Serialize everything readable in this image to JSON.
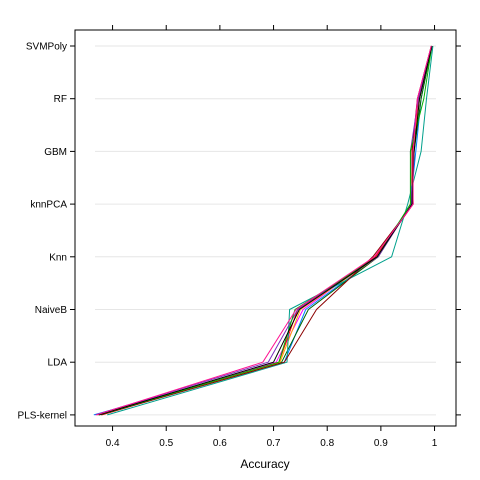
{
  "chart_data": {
    "type": "line",
    "title": "",
    "xlabel": "Accuracy",
    "ylabel": "",
    "xlim": [
      0.33,
      1.04
    ],
    "x_ticks": [
      "0.4",
      "0.5",
      "0.6",
      "0.7",
      "0.8",
      "0.9",
      "1"
    ],
    "x_tick_values": [
      0.4,
      0.5,
      0.6,
      0.7,
      0.8,
      0.9,
      1.0
    ],
    "categories": [
      "PLS-kernel",
      "LDA",
      "NaiveB",
      "Knn",
      "knnPCA",
      "GBM",
      "RF",
      "SVMPoly"
    ],
    "grid": true,
    "legend": "none",
    "series": [
      {
        "color": "#0080ff",
        "values": [
          0.365,
          0.72,
          0.76,
          0.895,
          0.955,
          0.965,
          0.975,
          0.995
        ]
      },
      {
        "color": "#ff00ff",
        "values": [
          0.37,
          0.705,
          0.755,
          0.89,
          0.96,
          0.958,
          0.972,
          0.996
        ]
      },
      {
        "color": "#006400",
        "values": [
          0.375,
          0.715,
          0.765,
          0.895,
          0.957,
          0.962,
          0.975,
          0.995
        ]
      },
      {
        "color": "#ff0000",
        "values": [
          0.38,
          0.71,
          0.745,
          0.89,
          0.96,
          0.958,
          0.97,
          0.994
        ]
      },
      {
        "color": "#ffa500",
        "values": [
          0.372,
          0.712,
          0.75,
          0.895,
          0.955,
          0.96,
          0.972,
          0.995
        ]
      },
      {
        "color": "#00a08c",
        "values": [
          0.39,
          0.725,
          0.73,
          0.92,
          0.95,
          0.975,
          0.985,
          0.997
        ]
      },
      {
        "color": "#8b0000",
        "values": [
          0.378,
          0.72,
          0.78,
          0.885,
          0.96,
          0.958,
          0.968,
          0.994
        ]
      },
      {
        "color": "#7b2fbe",
        "values": [
          0.368,
          0.69,
          0.745,
          0.895,
          0.957,
          0.955,
          0.97,
          0.995
        ]
      },
      {
        "color": "#00b000",
        "values": [
          0.375,
          0.71,
          0.74,
          0.893,
          0.955,
          0.955,
          0.98,
          0.995
        ]
      },
      {
        "color": "#000000",
        "values": [
          0.374,
          0.7,
          0.748,
          0.893,
          0.958,
          0.962,
          0.972,
          0.995
        ]
      },
      {
        "color": "#ff1493",
        "values": [
          0.37,
          0.68,
          0.742,
          0.888,
          0.96,
          0.96,
          0.968,
          0.994
        ]
      }
    ]
  }
}
